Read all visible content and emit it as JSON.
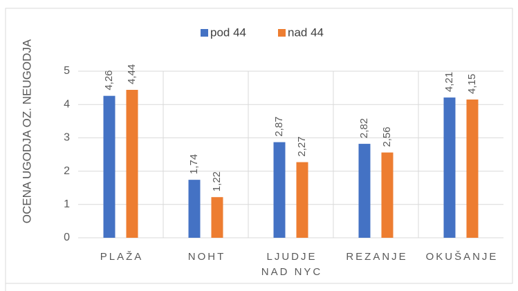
{
  "chart_data": {
    "type": "bar",
    "y_label": "OCENA UGODJA OZ. NEUGODJA",
    "categories": [
      "PLAŽA",
      "NOHT",
      "LJUDJE NAD NYC",
      "REZANJE",
      "OKUŠANJE"
    ],
    "series": [
      {
        "name": "pod 44",
        "color": "#4472c4",
        "values": [
          4.26,
          1.74,
          2.87,
          2.82,
          4.21
        ],
        "value_labels": [
          "4,26",
          "1,74",
          "2,87",
          "2,82",
          "4,21"
        ]
      },
      {
        "name": "nad 44",
        "color": "#ed7d31",
        "values": [
          4.44,
          1.22,
          2.27,
          2.56,
          4.15
        ],
        "value_labels": [
          "4,44",
          "1,22",
          "2,27",
          "2,56",
          "4,15"
        ]
      }
    ],
    "ylim": [
      0,
      5
    ],
    "yticks": [
      0,
      1,
      2,
      3,
      4,
      5
    ],
    "grid": true,
    "legend": "top"
  }
}
